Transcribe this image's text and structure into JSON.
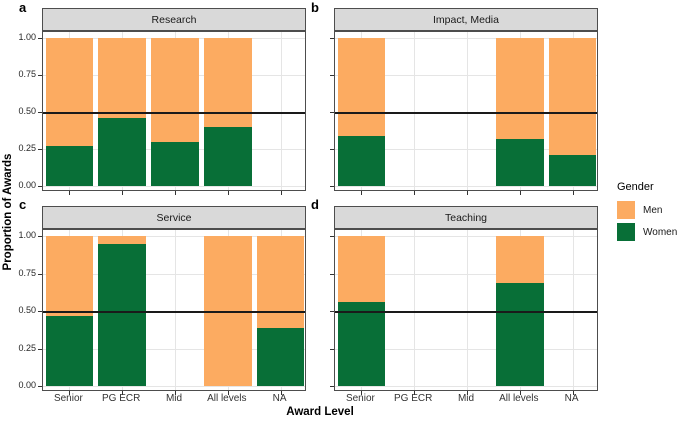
{
  "figure": {
    "ylabel": "Proportion of Awards",
    "xlabel": "Award Level"
  },
  "legend": {
    "title": "Gender",
    "position": "right",
    "entries": [
      {
        "label": "Men",
        "color": "#fcab61"
      },
      {
        "label": "Women",
        "color": "#086f37"
      }
    ]
  },
  "chart_data": {
    "type": "bar",
    "stacked": true,
    "orientation": "vertical",
    "categories": [
      "Senior",
      "PG ECR",
      "Mid",
      "All levels",
      "NA"
    ],
    "xlabel": "Award Level",
    "ylabel": "Proportion of Awards",
    "ylim": [
      0,
      1
    ],
    "y_ticks": [
      1.0,
      0.75,
      0.5,
      0.25,
      0.0
    ],
    "y_tick_labels": [
      "1.00",
      "0.75",
      "0.50",
      "0.25",
      "0.00"
    ],
    "reference_line": 0.5,
    "grid": true,
    "legend_position": "right",
    "series_names": [
      "Men",
      "Women"
    ],
    "colors": {
      "men": "#fcab61",
      "women": "#086f37"
    },
    "style": {
      "strip_fill": "#d9d9d9",
      "panel_border": "#4d4d4d",
      "gridline": "#e5e5e5",
      "reference_line_color": "#1a1a1a"
    },
    "panels": [
      {
        "letter": "a",
        "title": "Research",
        "women_proportion": [
          0.27,
          0.46,
          0.3,
          0.4,
          null
        ]
      },
      {
        "letter": "b",
        "title": "Impact, Media",
        "women_proportion": [
          0.34,
          null,
          null,
          0.32,
          0.21
        ]
      },
      {
        "letter": "c",
        "title": "Service",
        "women_proportion": [
          0.47,
          0.95,
          null,
          0.0,
          0.39
        ]
      },
      {
        "letter": "d",
        "title": "Teaching",
        "women_proportion": [
          0.56,
          null,
          null,
          0.69,
          null
        ]
      }
    ]
  }
}
